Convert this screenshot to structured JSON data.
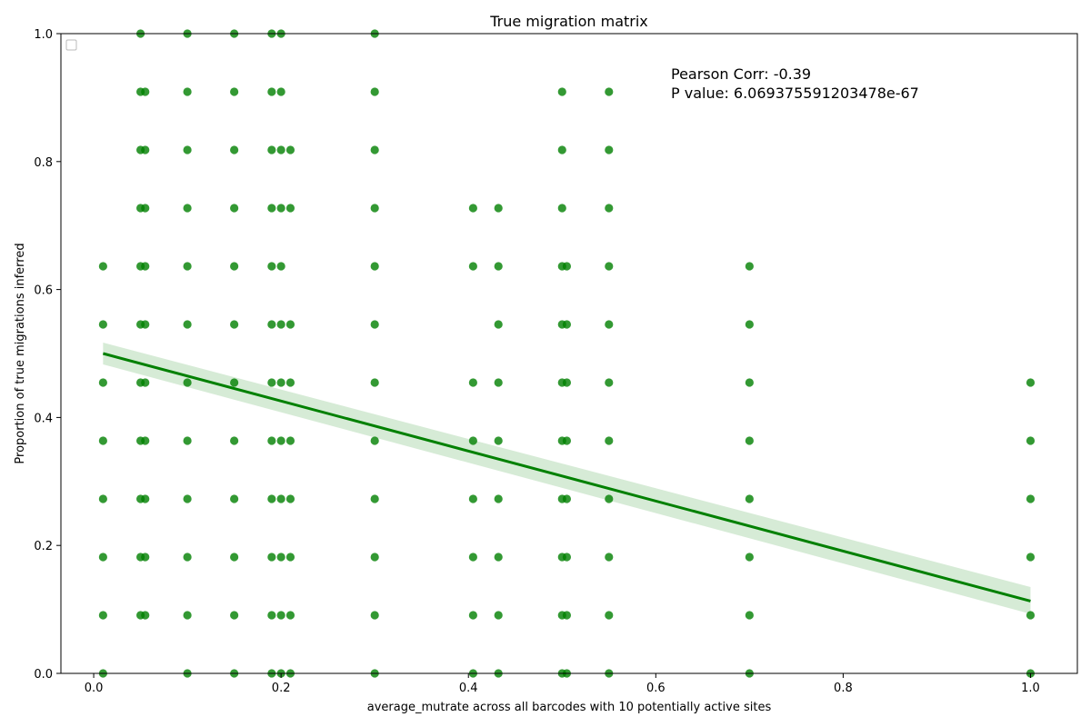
{
  "chart_data": {
    "type": "scatter",
    "title": "True migration matrix",
    "xlabel": "average_mutrate across all barcodes with 10 potentially active sites",
    "ylabel": "Proportion of true migrations inferred",
    "xlim": [
      -0.035,
      1.05
    ],
    "ylim": [
      0.0,
      1.0
    ],
    "xticks": [
      0.0,
      0.2,
      0.4,
      0.6,
      0.8,
      1.0
    ],
    "xtick_labels": [
      "0.0",
      "0.2",
      "0.4",
      "0.6",
      "0.8",
      "1.0"
    ],
    "yticks": [
      0.0,
      0.2,
      0.4,
      0.6,
      0.8,
      1.0
    ],
    "ytick_labels": [
      "0.0",
      "0.2",
      "0.4",
      "0.6",
      "0.8",
      "1.0"
    ],
    "grid": false,
    "legend": "top-left (empty)",
    "point_color": "#008000",
    "line_color": "#008000",
    "ci_color": "#cfe8cf",
    "annotations": [
      "Pearson Corr: -0.39",
      "P value: 6.069375591203478e-67"
    ],
    "regression": {
      "x": [
        0.01,
        1.0
      ],
      "y": [
        0.5,
        0.113
      ],
      "ci_lower": [
        0.483,
        0.093
      ],
      "ci_upper": [
        0.517,
        0.135
      ]
    },
    "points": [
      {
        "x": 0.01,
        "y": [
          0.0,
          0.0909,
          0.1818,
          0.2727,
          0.3636,
          0.4545,
          0.5455,
          0.6364
        ]
      },
      {
        "x": 0.05,
        "y": [
          0.0909,
          0.1818,
          0.2727,
          0.3636,
          0.4545,
          0.5455,
          0.6364,
          0.7273,
          0.8182,
          0.9091,
          1.0
        ]
      },
      {
        "x": 0.055,
        "y": [
          0.0909,
          0.1818,
          0.2727,
          0.3636,
          0.4545,
          0.5455,
          0.6364,
          0.7273,
          0.8182,
          0.9091
        ]
      },
      {
        "x": 0.1,
        "y": [
          0.0,
          0.0909,
          0.1818,
          0.2727,
          0.3636,
          0.4545,
          0.5455,
          0.6364,
          0.7273,
          0.8182,
          0.9091,
          1.0
        ]
      },
      {
        "x": 0.15,
        "y": [
          0.0,
          0.0909,
          0.1818,
          0.2727,
          0.3636,
          0.4545,
          0.5455,
          0.6364,
          0.7273,
          0.8182,
          0.9091,
          1.0
        ]
      },
      {
        "x": 0.19,
        "y": [
          0.0,
          0.0909,
          0.1818,
          0.2727,
          0.3636,
          0.4545,
          0.5455,
          0.6364,
          0.7273,
          0.8182,
          0.9091,
          1.0
        ]
      },
      {
        "x": 0.2,
        "y": [
          0.0,
          0.0909,
          0.1818,
          0.2727,
          0.3636,
          0.4545,
          0.5455,
          0.6364,
          0.7273,
          0.8182,
          0.9091,
          1.0
        ]
      },
      {
        "x": 0.21,
        "y": [
          0.0,
          0.0909,
          0.1818,
          0.2727,
          0.3636,
          0.4545,
          0.5455,
          0.7273,
          0.8182
        ]
      },
      {
        "x": 0.3,
        "y": [
          0.0,
          0.0909,
          0.1818,
          0.2727,
          0.3636,
          0.4545,
          0.5455,
          0.6364,
          0.7273,
          0.8182,
          0.9091,
          1.0
        ]
      },
      {
        "x": 0.405,
        "y": [
          0.0,
          0.0909,
          0.1818,
          0.2727,
          0.3636,
          0.4545,
          0.6364,
          0.7273
        ]
      },
      {
        "x": 0.432,
        "y": [
          0.0,
          0.0909,
          0.1818,
          0.2727,
          0.3636,
          0.4545,
          0.5455,
          0.6364,
          0.7273
        ]
      },
      {
        "x": 0.5,
        "y": [
          0.0,
          0.0909,
          0.1818,
          0.2727,
          0.3636,
          0.4545,
          0.5455,
          0.6364,
          0.7273,
          0.8182,
          0.9091
        ]
      },
      {
        "x": 0.505,
        "y": [
          0.0,
          0.0909,
          0.1818,
          0.2727,
          0.3636,
          0.4545,
          0.5455,
          0.6364
        ]
      },
      {
        "x": 0.55,
        "y": [
          0.0,
          0.0909,
          0.1818,
          0.2727,
          0.3636,
          0.4545,
          0.5455,
          0.6364,
          0.7273,
          0.8182,
          0.9091
        ]
      },
      {
        "x": 0.7,
        "y": [
          0.0,
          0.0909,
          0.1818,
          0.2727,
          0.3636,
          0.4545,
          0.5455,
          0.6364
        ]
      },
      {
        "x": 1.0,
        "y": [
          0.0,
          0.0909,
          0.1818,
          0.2727,
          0.3636,
          0.4545
        ]
      }
    ]
  }
}
